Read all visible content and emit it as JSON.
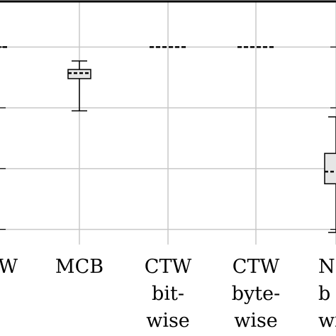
{
  "chart_data": {
    "type": "box",
    "title": "",
    "xlabel": "",
    "ylabel": "",
    "grid": true,
    "categories": [
      {
        "id": "ctw",
        "lines": [
          "W"
        ]
      },
      {
        "id": "mcb",
        "lines": [
          "MCB"
        ]
      },
      {
        "id": "ctw-bit",
        "lines": [
          "CTW",
          "bit-",
          "wise"
        ]
      },
      {
        "id": "ctw-byte",
        "lines": [
          "CTW",
          "byte-",
          "wise"
        ]
      },
      {
        "id": "n",
        "lines": [
          "N",
          "b",
          "wi"
        ]
      }
    ],
    "ylim": [
      0,
      4
    ],
    "y_gridlines": [
      0.25,
      1.25,
      2.25,
      3.25
    ],
    "boxes": [
      {
        "category": "ctw",
        "whislo": 3.25,
        "q1": 3.25,
        "med": 3.25,
        "q3": 3.25,
        "whishi": 3.25
      },
      {
        "category": "mcb",
        "whislo": 2.2,
        "q1": 2.73,
        "med": 2.82,
        "q3": 2.88,
        "whishi": 3.02
      },
      {
        "category": "ctw-bit",
        "whislo": 3.25,
        "q1": 3.25,
        "med": 3.25,
        "q3": 3.25,
        "whishi": 3.25
      },
      {
        "category": "ctw-byte",
        "whislo": 3.25,
        "q1": 3.25,
        "med": 3.25,
        "q3": 3.25,
        "whishi": 3.25
      },
      {
        "category": "n",
        "whislo": 0.2,
        "q1": 1.0,
        "med": 1.2,
        "q3": 1.5,
        "whishi": 2.1
      }
    ],
    "colors": {
      "box_fill": "#e6e6e6",
      "grid": "#c8c8c8",
      "line": "#000000"
    }
  }
}
